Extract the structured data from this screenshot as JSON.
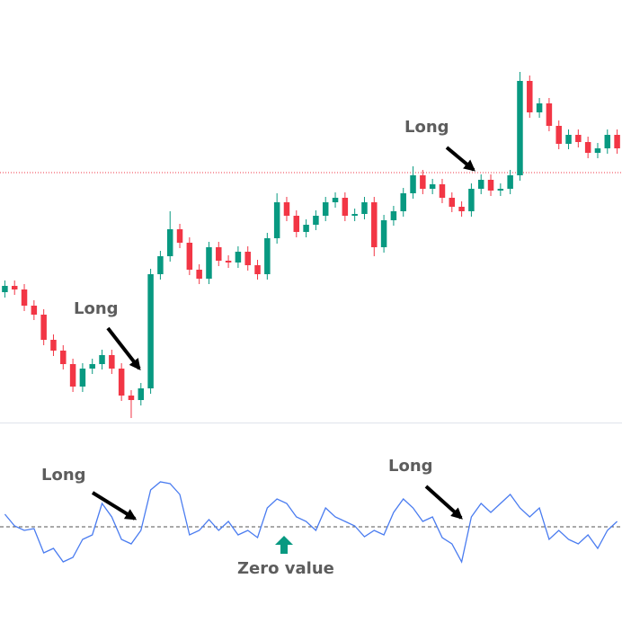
{
  "chart_data": [
    {
      "type": "candlestick",
      "up_color": "#089981",
      "down_color": "#f23645",
      "open": [
        175,
        182,
        178,
        160,
        150,
        122,
        110,
        95,
        70,
        90,
        95,
        105,
        90,
        60,
        55,
        68,
        195,
        215,
        245,
        230,
        200,
        190,
        225,
        210,
        208,
        220,
        205,
        195,
        235,
        275,
        260,
        242,
        250,
        260,
        275,
        280,
        260,
        262,
        275,
        225,
        255,
        265,
        285,
        305,
        290,
        295,
        280,
        270,
        265,
        290,
        300,
        288,
        290,
        305,
        410,
        375,
        385,
        360,
        340,
        350,
        342,
        330,
        335,
        350
      ],
      "high": [
        188,
        188,
        184,
        166,
        156,
        128,
        116,
        101,
        96,
        101,
        111,
        111,
        96,
        66,
        74,
        201,
        221,
        265,
        251,
        236,
        206,
        231,
        231,
        216,
        226,
        226,
        211,
        241,
        285,
        281,
        266,
        256,
        266,
        281,
        286,
        286,
        268,
        281,
        281,
        261,
        271,
        291,
        315,
        311,
        301,
        301,
        286,
        276,
        296,
        306,
        306,
        296,
        311,
        420,
        416,
        391,
        391,
        366,
        356,
        356,
        348,
        341,
        356,
        356
      ],
      "low": [
        169,
        172,
        154,
        144,
        116,
        104,
        89,
        64,
        64,
        84,
        89,
        84,
        54,
        35,
        49,
        62,
        189,
        209,
        224,
        194,
        184,
        184,
        204,
        202,
        202,
        199,
        189,
        189,
        229,
        254,
        236,
        236,
        244,
        254,
        269,
        254,
        254,
        256,
        215,
        219,
        249,
        259,
        279,
        284,
        284,
        274,
        264,
        259,
        259,
        284,
        282,
        282,
        284,
        299,
        369,
        369,
        354,
        334,
        334,
        336,
        324,
        324,
        329,
        329
      ],
      "close": [
        182,
        178,
        160,
        150,
        122,
        110,
        95,
        70,
        90,
        95,
        105,
        90,
        60,
        55,
        68,
        195,
        215,
        245,
        230,
        200,
        190,
        225,
        210,
        208,
        220,
        205,
        195,
        235,
        275,
        260,
        242,
        250,
        260,
        275,
        280,
        260,
        262,
        275,
        225,
        255,
        265,
        285,
        305,
        290,
        295,
        280,
        270,
        265,
        290,
        300,
        288,
        290,
        305,
        410,
        375,
        385,
        360,
        340,
        350,
        342,
        330,
        335,
        350,
        335
      ],
      "ylim": [
        30,
        500
      ],
      "price_line": 308,
      "price_line_color": "#f23645",
      "annotations": [
        "Long",
        "Long"
      ]
    },
    {
      "type": "line",
      "color": "#4a7cf0",
      "values": [
        14,
        1,
        -4,
        -2,
        -29,
        -24,
        -39,
        -34,
        -14,
        -9,
        26,
        11,
        -14,
        -19,
        -4,
        41,
        50,
        48,
        36,
        -9,
        -4,
        8,
        -4,
        6,
        -9,
        -4,
        -12,
        21,
        31,
        26,
        11,
        6,
        -4,
        21,
        11,
        6,
        1,
        -11,
        -4,
        -9,
        16,
        31,
        21,
        6,
        11,
        -12,
        -19,
        -39,
        11,
        26,
        16,
        26,
        36,
        21,
        11,
        21,
        -14,
        -4,
        -14,
        -19,
        -9,
        -24,
        -4,
        6
      ],
      "ylim": [
        -100,
        100
      ],
      "zero_line": 0,
      "annotations": [
        "Long",
        "Long",
        "Zero value"
      ]
    }
  ]
}
